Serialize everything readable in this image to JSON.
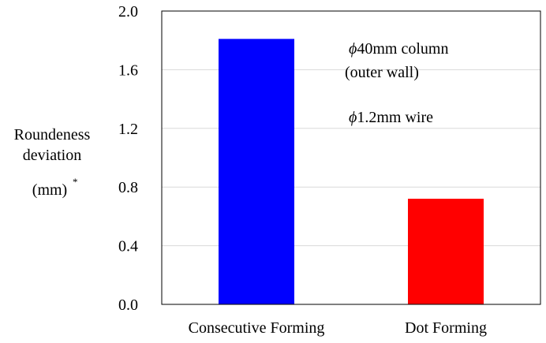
{
  "chart_data": {
    "type": "bar",
    "categories": [
      "Consecutive Forming",
      "Dot Forming"
    ],
    "values": [
      1.81,
      0.72
    ],
    "colors": [
      "#0000ff",
      "#ff0000"
    ],
    "title": "",
    "xlabel": "",
    "ylabel_lines": [
      "Roundeness",
      "deviation",
      "(mm)"
    ],
    "ylabel_superscript": "*",
    "ylim": [
      0,
      2.0
    ],
    "yticks": [
      "0.0",
      "0.4",
      "0.8",
      "1.2",
      "1.6",
      "2.0"
    ],
    "ytick_values": [
      0,
      0.4,
      0.8,
      1.2,
      1.6,
      2.0
    ],
    "grid": true,
    "annotations": [
      {
        "symbol": "ϕ",
        "text": "40mm column"
      },
      {
        "symbol": "",
        "text": "(outer wall)"
      },
      {
        "symbol": "ϕ",
        "text": "1.2mm wire"
      }
    ]
  }
}
